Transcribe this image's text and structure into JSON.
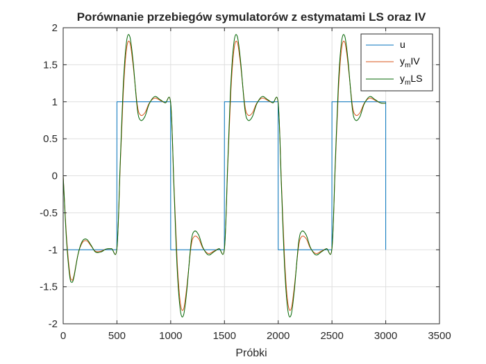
{
  "chart_data": {
    "type": "line",
    "title": "Porównanie przebiegów symulatorów z estymatami LS oraz IV",
    "xlabel": "Próbki",
    "ylabel": "",
    "xlim": [
      0,
      3500
    ],
    "ylim": [
      -2,
      2
    ],
    "xticks": [
      "0",
      "500",
      "1000",
      "1500",
      "2000",
      "2500",
      "3000",
      "3500"
    ],
    "yticks": [
      "-2",
      "-1.5",
      "-1",
      "-0.5",
      "0",
      "0.5",
      "1",
      "1.5",
      "2"
    ],
    "grid": true,
    "legend_position": "top-right",
    "colors": {
      "u": "#0072bd",
      "ymIV": "#d95319",
      "ymLS": "#006400"
    },
    "series": [
      {
        "key": "u",
        "legend": {
          "main": "u",
          "sub": "",
          "tail": ""
        },
        "x": [
          0,
          499,
          500,
          999,
          1000,
          1499,
          1500,
          1999,
          2000,
          2499,
          2500,
          3000,
          3000
        ],
        "values": [
          -1,
          -1,
          1,
          1,
          -1,
          -1,
          1,
          1,
          -1,
          -1,
          1,
          1,
          -1
        ]
      },
      {
        "key": "ymIV",
        "legend": {
          "main": "y",
          "sub": "m",
          "tail": "IV"
        },
        "x": [
          0,
          30,
          60,
          80,
          100,
          140,
          180,
          220,
          260,
          300,
          350,
          400,
          450,
          500,
          530,
          560,
          590,
          620,
          650,
          690,
          720,
          760,
          800,
          850,
          900,
          950,
          1000,
          1030,
          1060,
          1090,
          1120,
          1150,
          1190,
          1220,
          1260,
          1300,
          1350,
          1400,
          1450,
          1500,
          1530,
          1560,
          1590,
          1620,
          1650,
          1690,
          1720,
          1760,
          1800,
          1850,
          1900,
          1950,
          2000,
          2030,
          2060,
          2090,
          2120,
          2150,
          2190,
          2220,
          2260,
          2300,
          2350,
          2400,
          2450,
          2500,
          2530,
          2560,
          2590,
          2620,
          2650,
          2690,
          2720,
          2760,
          2800,
          2850,
          2900,
          2950,
          3000
        ],
        "values": [
          0,
          -0.8,
          -1.3,
          -1.41,
          -1.35,
          -1.05,
          -0.9,
          -0.88,
          -0.95,
          -1.02,
          -1.02,
          -0.99,
          -0.985,
          -0.98,
          0.1,
          1.15,
          1.72,
          1.8,
          1.5,
          0.95,
          0.82,
          0.85,
          0.98,
          1.05,
          1.02,
          0.985,
          0.98,
          -0.1,
          -1.15,
          -1.72,
          -1.8,
          -1.5,
          -0.95,
          -0.82,
          -0.85,
          -0.98,
          -1.05,
          -1.02,
          -0.985,
          -0.98,
          0.1,
          1.15,
          1.72,
          1.8,
          1.5,
          0.95,
          0.82,
          0.85,
          0.98,
          1.05,
          1.02,
          0.985,
          0.98,
          -0.1,
          -1.15,
          -1.72,
          -1.8,
          -1.5,
          -0.95,
          -0.82,
          -0.85,
          -0.98,
          -1.05,
          -1.02,
          -0.985,
          -0.98,
          0.1,
          1.15,
          1.72,
          1.8,
          1.5,
          0.95,
          0.82,
          0.85,
          0.98,
          1.05,
          1.02,
          0.985,
          0.98
        ]
      },
      {
        "key": "ymLS",
        "legend": {
          "main": "y",
          "sub": "m",
          "tail": "LS"
        },
        "x": [
          0,
          30,
          60,
          80,
          100,
          140,
          180,
          220,
          260,
          300,
          350,
          400,
          450,
          500,
          530,
          560,
          590,
          620,
          650,
          690,
          720,
          760,
          800,
          850,
          900,
          950,
          1000,
          1030,
          1060,
          1090,
          1120,
          1150,
          1190,
          1220,
          1260,
          1300,
          1350,
          1400,
          1450,
          1500,
          1530,
          1560,
          1590,
          1620,
          1650,
          1690,
          1720,
          1760,
          1800,
          1850,
          1900,
          1950,
          2000,
          2030,
          2060,
          2090,
          2120,
          2150,
          2190,
          2220,
          2260,
          2300,
          2350,
          2400,
          2450,
          2500,
          2530,
          2560,
          2590,
          2620,
          2650,
          2690,
          2720,
          2760,
          2800,
          2850,
          2900,
          2950,
          3000
        ],
        "values": [
          0,
          -0.85,
          -1.35,
          -1.44,
          -1.37,
          -1.05,
          -0.88,
          -0.86,
          -0.94,
          -1.03,
          -1.03,
          -0.99,
          -0.985,
          -0.98,
          0.15,
          1.25,
          1.82,
          1.88,
          1.55,
          0.9,
          0.75,
          0.8,
          0.97,
          1.07,
          1.03,
          0.985,
          0.98,
          -0.15,
          -1.25,
          -1.82,
          -1.88,
          -1.55,
          -0.9,
          -0.75,
          -0.8,
          -0.97,
          -1.07,
          -1.03,
          -0.985,
          -0.98,
          0.15,
          1.25,
          1.82,
          1.88,
          1.55,
          0.9,
          0.75,
          0.8,
          0.97,
          1.07,
          1.03,
          0.985,
          0.98,
          -0.15,
          -1.25,
          -1.82,
          -1.88,
          -1.55,
          -0.9,
          -0.75,
          -0.8,
          -0.97,
          -1.07,
          -1.03,
          -0.985,
          -0.98,
          0.15,
          1.25,
          1.82,
          1.88,
          1.55,
          0.9,
          0.75,
          0.8,
          0.97,
          1.07,
          1.03,
          0.985,
          0.98
        ]
      }
    ]
  }
}
